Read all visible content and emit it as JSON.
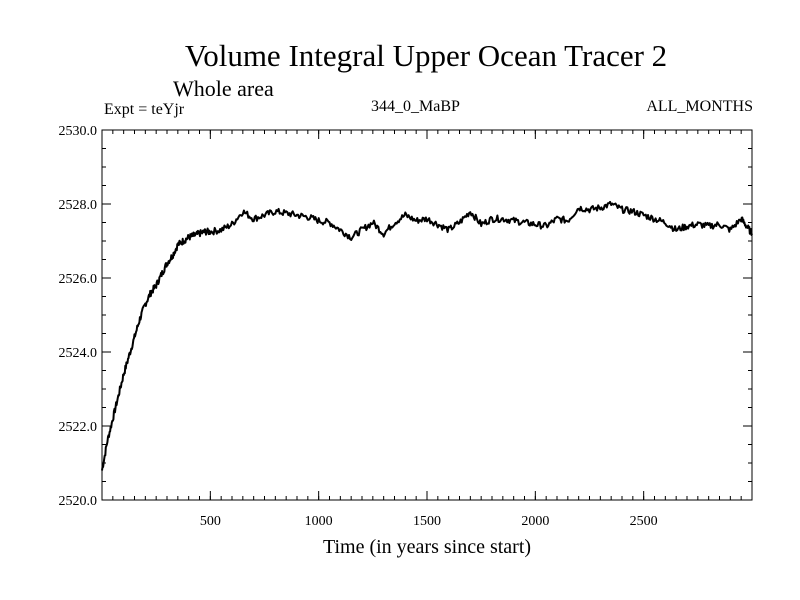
{
  "chart_data": {
    "type": "line",
    "title": "Volume Integral Upper Ocean Tracer 2",
    "subtitle": "Whole area",
    "left_label": "Expt = teYjr",
    "center_label": "344_0_MaBP",
    "right_label": "ALL_MONTHS",
    "xlabel": "Time (in years since start)",
    "ylabel": "",
    "xlim": [
      0,
      3000
    ],
    "ylim": [
      2520.0,
      2530.0
    ],
    "x_ticks": [
      500,
      1000,
      1500,
      2000,
      2500
    ],
    "x_tick_labels": [
      "500",
      "1000",
      "1500",
      "2000",
      "2500"
    ],
    "y_ticks": [
      2520.0,
      2522.0,
      2524.0,
      2526.0,
      2528.0,
      2530.0
    ],
    "y_tick_labels": [
      "2520.0",
      "2522.0",
      "2524.0",
      "2526.0",
      "2528.0",
      "2530.0"
    ],
    "grid": false,
    "series": [
      {
        "name": "Tracer 2",
        "x": [
          0,
          25,
          50,
          75,
          100,
          125,
          150,
          175,
          200,
          225,
          250,
          275,
          300,
          325,
          350,
          375,
          400,
          425,
          450,
          475,
          500,
          550,
          600,
          650,
          700,
          750,
          800,
          850,
          900,
          950,
          1000,
          1050,
          1100,
          1150,
          1200,
          1250,
          1300,
          1350,
          1400,
          1450,
          1500,
          1550,
          1600,
          1650,
          1700,
          1750,
          1800,
          1850,
          1900,
          1950,
          2000,
          2050,
          2100,
          2150,
          2200,
          2250,
          2300,
          2350,
          2400,
          2450,
          2500,
          2550,
          2600,
          2650,
          2700,
          2750,
          2800,
          2850,
          2900,
          2950,
          2975,
          3000
        ],
        "values": [
          2520.8,
          2521.6,
          2522.2,
          2522.8,
          2523.4,
          2523.9,
          2524.4,
          2524.9,
          2525.3,
          2525.6,
          2525.8,
          2526.1,
          2526.4,
          2526.6,
          2526.9,
          2527.0,
          2527.1,
          2527.15,
          2527.2,
          2527.25,
          2527.25,
          2527.3,
          2527.45,
          2527.8,
          2527.6,
          2527.7,
          2527.8,
          2527.75,
          2527.7,
          2527.65,
          2527.55,
          2527.5,
          2527.3,
          2527.1,
          2527.3,
          2527.5,
          2527.2,
          2527.5,
          2527.7,
          2527.55,
          2527.6,
          2527.45,
          2527.3,
          2527.5,
          2527.8,
          2527.45,
          2527.6,
          2527.6,
          2527.55,
          2527.5,
          2527.45,
          2527.4,
          2527.6,
          2527.55,
          2527.9,
          2527.85,
          2527.9,
          2528.0,
          2527.85,
          2527.8,
          2527.7,
          2527.6,
          2527.5,
          2527.3,
          2527.4,
          2527.45,
          2527.4,
          2527.45,
          2527.3,
          2527.6,
          2527.4,
          2527.2
        ]
      }
    ]
  }
}
